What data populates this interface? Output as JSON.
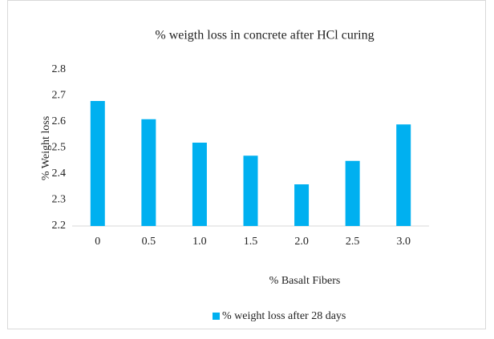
{
  "chart_data": {
    "type": "bar",
    "title": "% weigth loss in concrete after HCl curing",
    "x_label": "% Basalt Fibers",
    "y_label": "% Weight loss",
    "categories": [
      "0",
      "0.5",
      "1.0",
      "1.5",
      "2.0",
      "2.5",
      "3.0"
    ],
    "series": [
      {
        "name": "% weight loss after 28 days",
        "color": "#00b0f0",
        "values": [
          2.68,
          2.61,
          2.52,
          2.47,
          2.36,
          2.45,
          2.59
        ]
      }
    ],
    "ylim": [
      2.2,
      2.8
    ],
    "yticks": [
      2.2,
      2.3,
      2.4,
      2.5,
      2.6,
      2.7,
      2.8
    ],
    "grid": false,
    "legend": "bottom"
  }
}
